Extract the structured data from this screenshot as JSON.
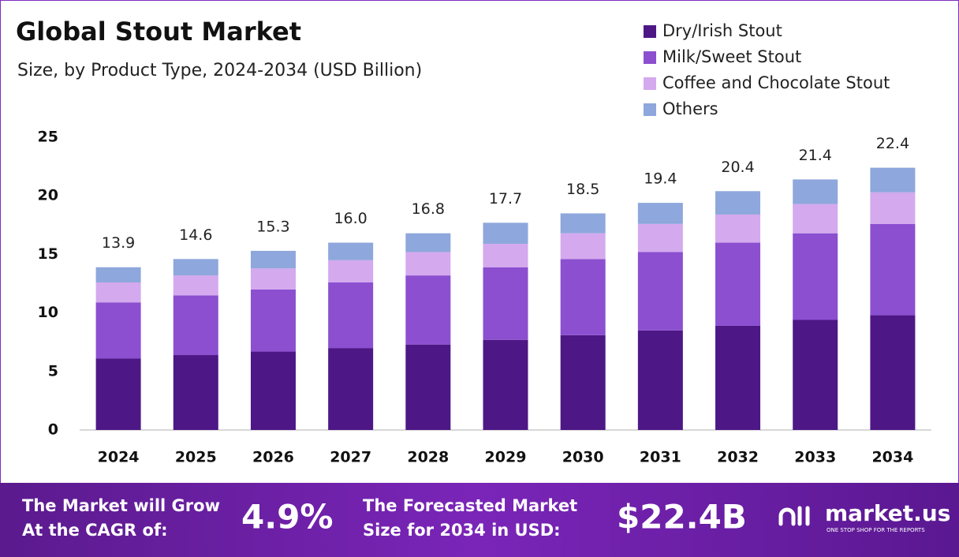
{
  "chart_data": {
    "type": "stacked-bar",
    "title": "Global Stout Market",
    "subtitle": "Size, by Product Type, 2024-2034 (USD Billion)",
    "categories": [
      "2024",
      "2025",
      "2026",
      "2027",
      "2028",
      "2029",
      "2030",
      "2031",
      "2032",
      "2033",
      "2034"
    ],
    "series": [
      {
        "name": "Dry/Irish Stout",
        "color": "#4e1786",
        "values": [
          6.1,
          6.4,
          6.7,
          7.0,
          7.3,
          7.7,
          8.1,
          8.5,
          8.9,
          9.4,
          9.8
        ]
      },
      {
        "name": "Milk/Sweet Stout",
        "color": "#8b4fd0",
        "values": [
          4.8,
          5.1,
          5.3,
          5.6,
          5.9,
          6.2,
          6.5,
          6.7,
          7.1,
          7.4,
          7.8
        ]
      },
      {
        "name": "Coffee and Chocolate Stout",
        "color": "#d4a9ee",
        "values": [
          1.7,
          1.7,
          1.8,
          1.9,
          2.0,
          2.0,
          2.2,
          2.4,
          2.4,
          2.5,
          2.7
        ]
      },
      {
        "name": "Others",
        "color": "#8ea7dc",
        "values": [
          1.3,
          1.4,
          1.5,
          1.5,
          1.6,
          1.8,
          1.7,
          1.8,
          2.0,
          2.1,
          2.1
        ]
      }
    ],
    "totals": [
      "13.9",
      "14.6",
      "15.3",
      "16.0",
      "16.8",
      "17.7",
      "18.5",
      "19.4",
      "20.4",
      "21.4",
      "22.4"
    ],
    "ylim": [
      0,
      25
    ],
    "yticks": [
      0,
      5,
      10,
      15,
      20,
      25
    ],
    "grid": false,
    "legend": "top-right"
  },
  "footer": {
    "cagr_text": [
      "The Market will Grow",
      "At the CAGR of:"
    ],
    "cagr_value": "4.9%",
    "forecast_text": [
      "The Forecasted Market",
      "Size for 2034 in USD:"
    ],
    "forecast_value": "$22.4B",
    "logo": "market.us",
    "tagline": "ONE STOP SHOP FOR THE REPORTS"
  }
}
